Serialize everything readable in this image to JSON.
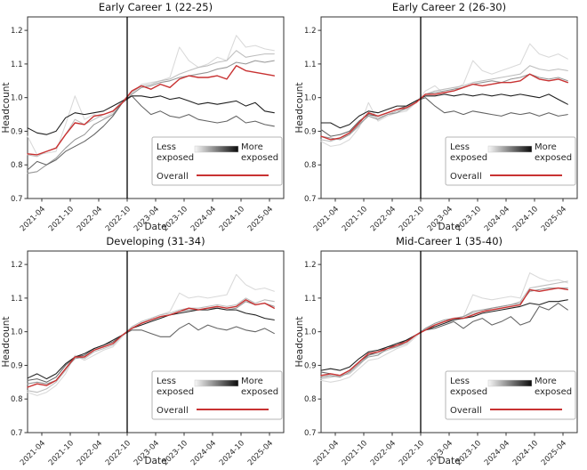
{
  "figure": {
    "background": "#ffffff",
    "axis_color": "#333333",
    "vline_color": "#000000",
    "legend": {
      "less_lines": [
        "Less",
        "exposed"
      ],
      "more_lines": [
        "More",
        "exposed"
      ],
      "overall_label": "Overall",
      "gradient_from": "#f7f7f7",
      "gradient_to": "#0a0a0a",
      "overall_color": "#c83232",
      "border_color": "#b5b5b5"
    }
  },
  "chart_data": [
    {
      "type": "line",
      "title": "Early Career 1 (22-25)",
      "xlabel": "Date",
      "ylabel": "Headcount",
      "ylim": [
        0.7,
        1.24
      ],
      "xlim": [
        0,
        54
      ],
      "yticks": [
        0.7,
        0.8,
        0.9,
        1.0,
        1.1,
        1.2
      ],
      "xtick_months": [
        3,
        9,
        15,
        21,
        27,
        33,
        39,
        45,
        51
      ],
      "xtick_labels": [
        "2021-04",
        "2021-10",
        "2022-04",
        "2022-10",
        "2023-04",
        "2023-10",
        "2024-04",
        "2024-10",
        "2025-04"
      ],
      "x_start_month": "2021-01",
      "x_unit": "months since 2021-01",
      "vline_month": 21,
      "vline_date": "2022-10",
      "x": [
        0,
        2,
        4,
        6,
        8,
        10,
        12,
        14,
        16,
        18,
        20,
        22,
        24,
        26,
        28,
        30,
        32,
        34,
        36,
        38,
        40,
        42,
        44,
        46,
        48,
        50,
        52
      ],
      "series": [
        {
          "name": "least_exposed",
          "color": "#d9d9d9",
          "values": [
            0.885,
            0.83,
            0.835,
            0.84,
            0.92,
            1.005,
            0.935,
            0.95,
            0.94,
            0.955,
            0.985,
            1.015,
            1.04,
            1.045,
            1.05,
            1.06,
            1.15,
            1.11,
            1.09,
            1.1,
            1.12,
            1.11,
            1.185,
            1.15,
            1.155,
            1.145,
            1.14
          ]
        },
        {
          "name": "quintile_2",
          "color": "#bdbdbd",
          "values": [
            0.83,
            0.825,
            0.84,
            0.85,
            0.89,
            0.935,
            0.92,
            0.935,
            0.95,
            0.96,
            0.99,
            1.015,
            1.035,
            1.04,
            1.05,
            1.055,
            1.07,
            1.08,
            1.09,
            1.095,
            1.105,
            1.11,
            1.14,
            1.12,
            1.125,
            1.13,
            1.13
          ]
        },
        {
          "name": "quintile_3",
          "color": "#969696",
          "values": [
            0.775,
            0.78,
            0.8,
            0.82,
            0.85,
            0.875,
            0.89,
            0.92,
            0.935,
            0.95,
            0.985,
            1.01,
            1.03,
            1.035,
            1.045,
            1.05,
            1.06,
            1.065,
            1.07,
            1.075,
            1.085,
            1.09,
            1.105,
            1.1,
            1.11,
            1.105,
            1.11
          ]
        },
        {
          "name": "quintile_4",
          "color": "#636363",
          "values": [
            0.785,
            0.81,
            0.8,
            0.815,
            0.84,
            0.855,
            0.87,
            0.89,
            0.915,
            0.945,
            0.985,
            1.005,
            0.975,
            0.95,
            0.96,
            0.945,
            0.94,
            0.95,
            0.935,
            0.93,
            0.925,
            0.93,
            0.945,
            0.925,
            0.93,
            0.92,
            0.915
          ]
        },
        {
          "name": "most_exposed",
          "color": "#1f1f1f",
          "values": [
            0.91,
            0.895,
            0.89,
            0.9,
            0.94,
            0.955,
            0.95,
            0.955,
            0.96,
            0.975,
            0.99,
            1.005,
            1.005,
            1.0,
            1.005,
            0.995,
            1.0,
            0.99,
            0.98,
            0.985,
            0.98,
            0.985,
            0.99,
            0.975,
            0.985,
            0.96,
            0.955
          ]
        },
        {
          "name": "overall",
          "color": "#c83232",
          "values": [
            0.833,
            0.83,
            0.84,
            0.85,
            0.89,
            0.925,
            0.92,
            0.945,
            0.95,
            0.96,
            0.985,
            1.02,
            1.035,
            1.025,
            1.04,
            1.03,
            1.055,
            1.065,
            1.06,
            1.06,
            1.065,
            1.055,
            1.095,
            1.08,
            1.075,
            1.07,
            1.065
          ]
        }
      ]
    },
    {
      "type": "line",
      "title": "Early Career 2 (26-30)",
      "xlabel": "Date",
      "ylabel": "Headcount",
      "ylim": [
        0.7,
        1.24
      ],
      "xlim": [
        0,
        54
      ],
      "yticks": [
        0.7,
        0.8,
        0.9,
        1.0,
        1.1,
        1.2
      ],
      "xtick_months": [
        3,
        9,
        15,
        21,
        27,
        33,
        39,
        45,
        51
      ],
      "xtick_labels": [
        "2021-04",
        "2021-10",
        "2022-04",
        "2022-10",
        "2023-04",
        "2023-10",
        "2024-04",
        "2024-10",
        "2025-04"
      ],
      "x_start_month": "2021-01",
      "x_unit": "months since 2021-01",
      "vline_month": 21,
      "vline_date": "2022-10",
      "x": [
        0,
        2,
        4,
        6,
        8,
        10,
        12,
        14,
        16,
        18,
        20,
        22,
        24,
        26,
        28,
        30,
        32,
        34,
        36,
        38,
        40,
        42,
        44,
        46,
        48,
        50,
        52
      ],
      "series": [
        {
          "name": "least_exposed",
          "color": "#d9d9d9",
          "values": [
            0.87,
            0.855,
            0.86,
            0.875,
            0.91,
            0.985,
            0.93,
            0.945,
            0.955,
            0.96,
            0.985,
            1.02,
            1.035,
            1.01,
            1.025,
            1.04,
            1.11,
            1.08,
            1.07,
            1.08,
            1.09,
            1.1,
            1.16,
            1.13,
            1.12,
            1.13,
            1.115
          ]
        },
        {
          "name": "quintile_2",
          "color": "#bdbdbd",
          "values": [
            0.875,
            0.87,
            0.88,
            0.89,
            0.915,
            0.95,
            0.94,
            0.95,
            0.96,
            0.965,
            0.985,
            1.01,
            1.02,
            1.025,
            1.03,
            1.035,
            1.045,
            1.05,
            1.055,
            1.06,
            1.065,
            1.07,
            1.095,
            1.085,
            1.08,
            1.085,
            1.08
          ]
        },
        {
          "name": "quintile_3",
          "color": "#969696",
          "values": [
            0.885,
            0.88,
            0.875,
            0.89,
            0.92,
            0.945,
            0.935,
            0.95,
            0.955,
            0.97,
            0.985,
            1.01,
            1.015,
            1.02,
            1.025,
            1.03,
            1.04,
            1.045,
            1.05,
            1.045,
            1.055,
            1.06,
            1.07,
            1.06,
            1.055,
            1.06,
            1.05
          ]
        },
        {
          "name": "quintile_4",
          "color": "#636363",
          "values": [
            0.905,
            0.885,
            0.89,
            0.9,
            0.93,
            0.95,
            0.945,
            0.955,
            0.965,
            0.975,
            0.99,
            1.0,
            0.975,
            0.955,
            0.96,
            0.95,
            0.96,
            0.955,
            0.95,
            0.945,
            0.955,
            0.95,
            0.955,
            0.945,
            0.955,
            0.945,
            0.95
          ]
        },
        {
          "name": "most_exposed",
          "color": "#1f1f1f",
          "values": [
            0.925,
            0.925,
            0.91,
            0.92,
            0.945,
            0.96,
            0.955,
            0.965,
            0.975,
            0.975,
            0.99,
            1.005,
            1.005,
            1.01,
            1.005,
            1.01,
            1.005,
            1.01,
            1.005,
            1.01,
            1.005,
            1.01,
            1.005,
            1.0,
            1.01,
            0.995,
            0.98
          ]
        },
        {
          "name": "overall",
          "color": "#c83232",
          "values": [
            0.885,
            0.875,
            0.88,
            0.895,
            0.925,
            0.955,
            0.945,
            0.955,
            0.965,
            0.97,
            0.985,
            1.01,
            1.01,
            1.015,
            1.02,
            1.03,
            1.04,
            1.035,
            1.04,
            1.045,
            1.045,
            1.05,
            1.07,
            1.055,
            1.05,
            1.055,
            1.045
          ]
        }
      ]
    },
    {
      "type": "line",
      "title": "Developing (31-34)",
      "xlabel": "Date",
      "ylabel": "Headcount",
      "ylim": [
        0.7,
        1.24
      ],
      "xlim": [
        0,
        54
      ],
      "yticks": [
        0.7,
        0.8,
        0.9,
        1.0,
        1.1,
        1.2
      ],
      "xtick_months": [
        3,
        9,
        15,
        21,
        27,
        33,
        39,
        45,
        51
      ],
      "xtick_labels": [
        "2021-04",
        "2021-10",
        "2022-04",
        "2022-10",
        "2023-04",
        "2023-10",
        "2024-04",
        "2024-10",
        "2025-04"
      ],
      "x_start_month": "2021-01",
      "x_unit": "months since 2021-01",
      "vline_month": 21,
      "vline_date": "2022-10",
      "x": [
        0,
        2,
        4,
        6,
        8,
        10,
        12,
        14,
        16,
        18,
        20,
        22,
        24,
        26,
        28,
        30,
        32,
        34,
        36,
        38,
        40,
        42,
        44,
        46,
        48,
        50,
        52
      ],
      "series": [
        {
          "name": "least_exposed",
          "color": "#d9d9d9",
          "values": [
            0.82,
            0.81,
            0.82,
            0.84,
            0.875,
            0.93,
            0.915,
            0.93,
            0.945,
            0.955,
            0.985,
            1.015,
            1.03,
            1.04,
            1.05,
            1.06,
            1.115,
            1.1,
            1.105,
            1.1,
            1.105,
            1.11,
            1.17,
            1.14,
            1.125,
            1.13,
            1.12
          ]
        },
        {
          "name": "quintile_2",
          "color": "#bdbdbd",
          "values": [
            0.825,
            0.82,
            0.83,
            0.85,
            0.885,
            0.925,
            0.92,
            0.94,
            0.95,
            0.96,
            0.99,
            1.015,
            1.03,
            1.04,
            1.05,
            1.055,
            1.065,
            1.07,
            1.07,
            1.075,
            1.08,
            1.075,
            1.08,
            1.1,
            1.085,
            1.095,
            1.09
          ]
        },
        {
          "name": "quintile_3",
          "color": "#969696",
          "values": [
            0.845,
            0.85,
            0.845,
            0.855,
            0.89,
            0.92,
            0.925,
            0.945,
            0.955,
            0.965,
            0.99,
            1.01,
            1.025,
            1.035,
            1.045,
            1.05,
            1.06,
            1.065,
            1.065,
            1.07,
            1.07,
            1.065,
            1.07,
            1.09,
            1.08,
            1.085,
            1.075
          ]
        },
        {
          "name": "quintile_4",
          "color": "#636363",
          "values": [
            0.855,
            0.86,
            0.85,
            0.865,
            0.9,
            0.925,
            0.93,
            0.95,
            0.96,
            0.97,
            0.99,
            1.005,
            1.005,
            0.995,
            0.985,
            0.985,
            1.01,
            1.025,
            1.005,
            1.02,
            1.01,
            1.005,
            1.015,
            1.005,
            1.0,
            1.01,
            0.995
          ]
        },
        {
          "name": "most_exposed",
          "color": "#1f1f1f",
          "values": [
            0.862,
            0.875,
            0.86,
            0.875,
            0.905,
            0.925,
            0.935,
            0.95,
            0.96,
            0.975,
            0.99,
            1.01,
            1.02,
            1.03,
            1.04,
            1.05,
            1.055,
            1.06,
            1.065,
            1.065,
            1.07,
            1.065,
            1.065,
            1.055,
            1.05,
            1.04,
            1.035
          ]
        },
        {
          "name": "overall",
          "color": "#c83232",
          "values": [
            0.835,
            0.845,
            0.84,
            0.855,
            0.89,
            0.925,
            0.925,
            0.945,
            0.955,
            0.965,
            0.99,
            1.01,
            1.025,
            1.035,
            1.045,
            1.05,
            1.06,
            1.07,
            1.065,
            1.07,
            1.075,
            1.07,
            1.075,
            1.095,
            1.08,
            1.085,
            1.07
          ]
        }
      ]
    },
    {
      "type": "line",
      "title": "Mid-Career 1 (35-40)",
      "xlabel": "Date",
      "ylabel": "Headcount",
      "ylim": [
        0.7,
        1.24
      ],
      "xlim": [
        0,
        54
      ],
      "yticks": [
        0.7,
        0.8,
        0.9,
        1.0,
        1.1,
        1.2
      ],
      "xtick_months": [
        3,
        9,
        15,
        21,
        27,
        33,
        39,
        45,
        51
      ],
      "xtick_labels": [
        "2021-04",
        "2021-10",
        "2022-04",
        "2022-10",
        "2023-04",
        "2023-10",
        "2024-04",
        "2024-10",
        "2025-04"
      ],
      "x_start_month": "2021-01",
      "x_unit": "months since 2021-01",
      "vline_month": 21,
      "vline_date": "2022-10",
      "x": [
        0,
        2,
        4,
        6,
        8,
        10,
        12,
        14,
        16,
        18,
        20,
        22,
        24,
        26,
        28,
        30,
        32,
        34,
        36,
        38,
        40,
        42,
        44,
        46,
        48,
        50,
        52
      ],
      "series": [
        {
          "name": "least_exposed",
          "color": "#d9d9d9",
          "values": [
            0.855,
            0.85,
            0.855,
            0.865,
            0.89,
            0.915,
            0.92,
            0.935,
            0.95,
            0.96,
            0.985,
            1.01,
            1.02,
            1.03,
            1.04,
            1.045,
            1.11,
            1.1,
            1.095,
            1.1,
            1.105,
            1.1,
            1.175,
            1.16,
            1.15,
            1.155,
            1.145
          ]
        },
        {
          "name": "quintile_2",
          "color": "#bdbdbd",
          "values": [
            0.86,
            0.865,
            0.87,
            0.875,
            0.9,
            0.93,
            0.935,
            0.945,
            0.955,
            0.965,
            0.99,
            1.01,
            1.02,
            1.03,
            1.035,
            1.045,
            1.055,
            1.06,
            1.07,
            1.075,
            1.08,
            1.09,
            1.13,
            1.135,
            1.14,
            1.145,
            1.15
          ]
        },
        {
          "name": "quintile_3",
          "color": "#969696",
          "values": [
            0.865,
            0.87,
            0.865,
            0.88,
            0.905,
            0.925,
            0.93,
            0.95,
            0.955,
            0.97,
            0.99,
            1.01,
            1.025,
            1.035,
            1.04,
            1.045,
            1.06,
            1.065,
            1.07,
            1.075,
            1.08,
            1.085,
            1.12,
            1.125,
            1.13,
            1.13,
            1.13
          ]
        },
        {
          "name": "quintile_4",
          "color": "#636363",
          "values": [
            0.88,
            0.875,
            0.87,
            0.885,
            0.91,
            0.93,
            0.94,
            0.955,
            0.96,
            0.975,
            0.99,
            1.005,
            1.01,
            1.02,
            1.03,
            1.01,
            1.03,
            1.04,
            1.02,
            1.03,
            1.045,
            1.02,
            1.03,
            1.075,
            1.065,
            1.085,
            1.065
          ]
        },
        {
          "name": "most_exposed",
          "color": "#1f1f1f",
          "values": [
            0.885,
            0.89,
            0.885,
            0.895,
            0.92,
            0.94,
            0.945,
            0.955,
            0.965,
            0.975,
            0.99,
            1.005,
            1.015,
            1.025,
            1.035,
            1.04,
            1.045,
            1.055,
            1.06,
            1.065,
            1.07,
            1.075,
            1.085,
            1.08,
            1.09,
            1.09,
            1.095
          ]
        },
        {
          "name": "overall",
          "color": "#c83232",
          "values": [
            0.87,
            0.875,
            0.87,
            0.885,
            0.91,
            0.935,
            0.94,
            0.95,
            0.96,
            0.97,
            0.99,
            1.005,
            1.02,
            1.03,
            1.04,
            1.04,
            1.05,
            1.06,
            1.065,
            1.07,
            1.075,
            1.08,
            1.125,
            1.12,
            1.125,
            1.13,
            1.125
          ]
        }
      ]
    }
  ]
}
